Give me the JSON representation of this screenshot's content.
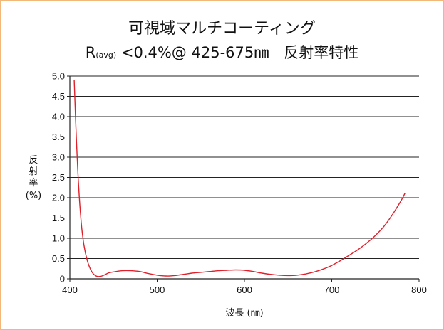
{
  "chart_data": {
    "type": "line",
    "title_line1": "可視域マルチコーティング",
    "title_line2": {
      "prefix": "R",
      "subscript": "(avg)",
      "main": " <0.4%@ 425-675",
      "unit": "㎚",
      "suffix": "　反射率特性"
    },
    "xlabel": "波長 (㎚)",
    "ylabel_chars": [
      "反",
      "射",
      "率"
    ],
    "ylabel_unit": "(%)",
    "xlim": [
      400,
      800
    ],
    "ylim": [
      0,
      5.0
    ],
    "x_ticks": [
      "400",
      "500",
      "600",
      "700",
      "800"
    ],
    "y_ticks": [
      "0",
      "0.5",
      "1.0",
      "1.5",
      "2.0",
      "2.5",
      "3.0",
      "3.5",
      "4.0",
      "4.5",
      "5.0"
    ],
    "grid": "horizontal",
    "line_color": "#e0202a",
    "series": [
      {
        "x": [
          405,
          407,
          410,
          413,
          416,
          420,
          425,
          430,
          435,
          440,
          445,
          450,
          460,
          470,
          480,
          490,
          500,
          510,
          520,
          530,
          540,
          550,
          560,
          570,
          580,
          590,
          600,
          610,
          620,
          630,
          640,
          650,
          660,
          670,
          680,
          690,
          700,
          710,
          720,
          730,
          740,
          750,
          760,
          770,
          780,
          784
        ],
        "y": [
          4.9,
          3.7,
          2.3,
          1.4,
          0.85,
          0.45,
          0.18,
          0.07,
          0.06,
          0.1,
          0.15,
          0.17,
          0.2,
          0.2,
          0.18,
          0.13,
          0.09,
          0.07,
          0.08,
          0.11,
          0.14,
          0.16,
          0.18,
          0.2,
          0.21,
          0.22,
          0.21,
          0.18,
          0.14,
          0.11,
          0.09,
          0.08,
          0.09,
          0.12,
          0.17,
          0.24,
          0.33,
          0.45,
          0.58,
          0.72,
          0.88,
          1.07,
          1.3,
          1.6,
          1.95,
          2.12
        ]
      }
    ]
  }
}
